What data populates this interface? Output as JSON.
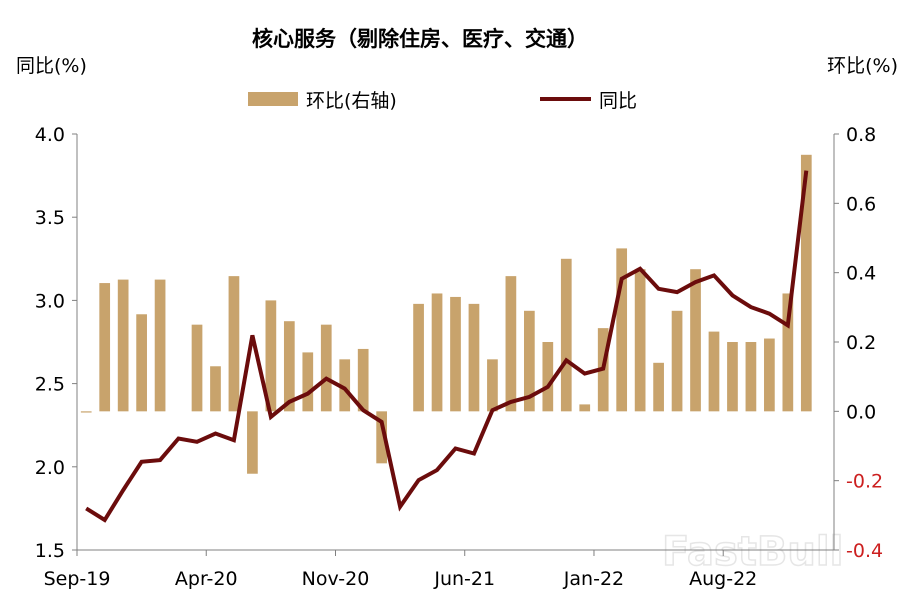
{
  "chart_data": {
    "type": "bar+line",
    "title": "核心服务（剔除住房、医疗、交通）",
    "left_axis_label": "同比(%)",
    "right_axis_label": "环比(%)",
    "legend": [
      {
        "label": "环比(右轴)",
        "kind": "bar",
        "color": "#c8a36c"
      },
      {
        "label": "同比",
        "kind": "line",
        "color": "#6b0c0c"
      }
    ],
    "x_tick_labels": [
      "Sep-19",
      "Apr-20",
      "Nov-20",
      "Jun-21",
      "Jan-22",
      "Aug-22"
    ],
    "x_tick_indices": [
      0,
      7,
      14,
      21,
      28,
      35
    ],
    "months": [
      "2019-09",
      "2019-10",
      "2019-11",
      "2019-12",
      "2020-01",
      "2020-02",
      "2020-03",
      "2020-04",
      "2020-05",
      "2020-06",
      "2020-07",
      "2020-08",
      "2020-09",
      "2020-10",
      "2020-11",
      "2020-12",
      "2021-01",
      "2021-02",
      "2021-03",
      "2021-04",
      "2021-05",
      "2021-06",
      "2021-07",
      "2021-08",
      "2021-09",
      "2021-10",
      "2021-11",
      "2021-12",
      "2022-01",
      "2022-02",
      "2022-03",
      "2022-04",
      "2022-05",
      "2022-06",
      "2022-07",
      "2022-08",
      "2022-09",
      "2022-10",
      "2022-11",
      "2022-12",
      "2023-01"
    ],
    "left_ylim": [
      1.5,
      4.0
    ],
    "left_yticks": [
      "1.5",
      "2.0",
      "2.5",
      "3.0",
      "3.5",
      "4.0"
    ],
    "right_ylim": [
      -0.4,
      0.8
    ],
    "right_yticks": [
      "-0.4",
      "-0.2",
      "0.0",
      "0.2",
      "0.4",
      "0.6",
      "0.8"
    ],
    "series": [
      {
        "name": "环比(右轴)",
        "axis": "right",
        "type": "bar",
        "color": "#c8a36c",
        "values": [
          0.0,
          0.37,
          0.38,
          0.28,
          0.38,
          null,
          0.25,
          0.13,
          0.39,
          -0.18,
          0.32,
          0.26,
          0.17,
          0.25,
          0.15,
          0.18,
          -0.15,
          null,
          0.31,
          0.34,
          0.33,
          0.31,
          0.15,
          0.39,
          0.29,
          0.2,
          0.44,
          0.02,
          0.24,
          0.47,
          0.41,
          0.14,
          0.29,
          0.41,
          0.23,
          0.2,
          0.2,
          0.21,
          0.34,
          0.74,
          null
        ]
      },
      {
        "name": "同比",
        "axis": "left",
        "type": "line",
        "color": "#6b0c0c",
        "values": [
          1.75,
          1.68,
          1.86,
          2.03,
          2.04,
          2.17,
          2.15,
          2.2,
          2.16,
          2.79,
          2.3,
          2.39,
          2.44,
          2.53,
          2.47,
          2.34,
          2.27,
          1.76,
          1.92,
          1.98,
          2.11,
          2.08,
          2.34,
          2.39,
          2.42,
          2.48,
          2.64,
          2.56,
          2.59,
          3.13,
          3.19,
          3.07,
          3.05,
          3.11,
          3.15,
          3.03,
          2.96,
          2.92,
          2.85,
          3.78,
          null
        ]
      }
    ],
    "grid": false,
    "legend_position": "top-center"
  },
  "watermark": "FastBull"
}
